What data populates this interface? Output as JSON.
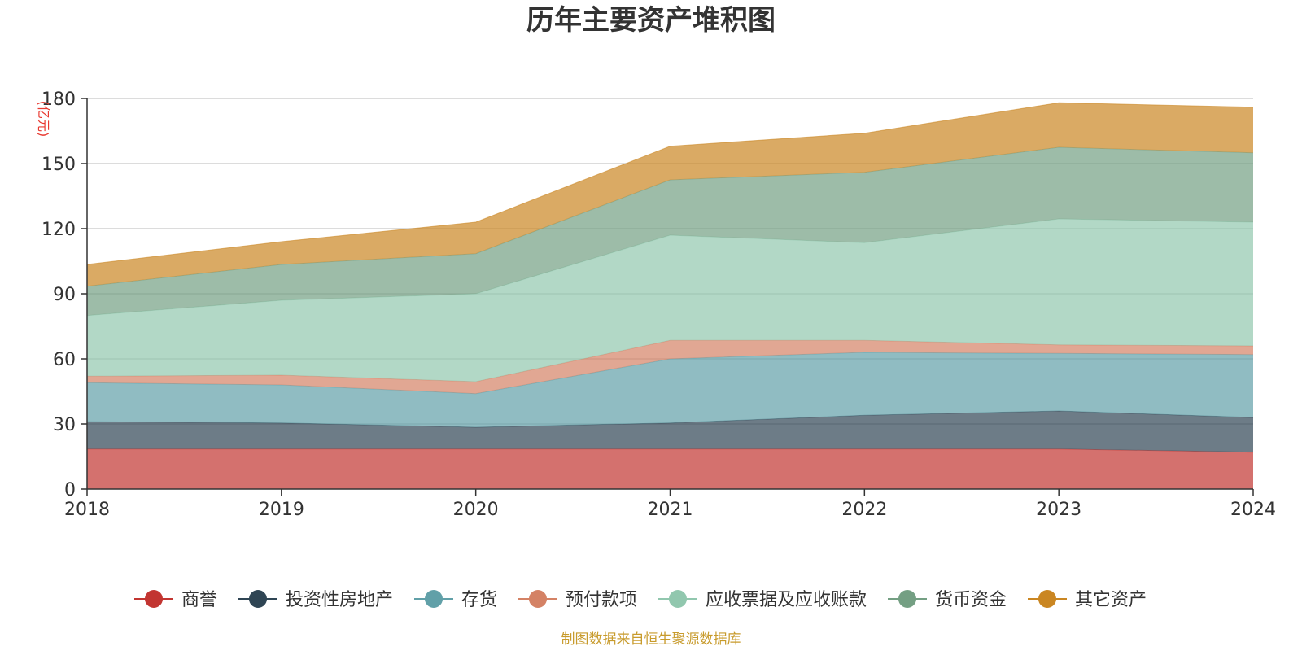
{
  "chart_data": {
    "type": "area",
    "stacked": true,
    "title": "历年主要资产堆积图",
    "unit": "(亿元)",
    "x": [
      "2018",
      "2019",
      "2020",
      "2021",
      "2022",
      "2023",
      "2024"
    ],
    "ylim": [
      0,
      180
    ],
    "yticks": [
      "0",
      "30",
      "60",
      "90",
      "120",
      "150",
      "180"
    ],
    "grid": true,
    "legend_position": "bottom",
    "series": [
      {
        "name": "商誉",
        "color": "#c23531",
        "values": [
          18.5,
          18.5,
          18.5,
          18.5,
          18.5,
          18.5,
          17.0
        ]
      },
      {
        "name": "投资性房地产",
        "color": "#2f4554",
        "values": [
          12.5,
          12.0,
          10.0,
          12.0,
          15.5,
          17.5,
          16.0
        ]
      },
      {
        "name": "存货",
        "color": "#61a0a8",
        "values": [
          18.0,
          17.5,
          15.5,
          29.5,
          29.0,
          26.5,
          29.0
        ]
      },
      {
        "name": "预付款项",
        "color": "#d48265",
        "values": [
          3.0,
          4.5,
          5.5,
          8.5,
          5.5,
          4.0,
          4.0
        ]
      },
      {
        "name": "应收票据及应收账款",
        "color": "#91c7ae",
        "values": [
          28.0,
          34.5,
          40.5,
          48.5,
          45.0,
          58.0,
          57.0
        ]
      },
      {
        "name": "货币资金",
        "color": "#749f83",
        "values": [
          13.5,
          16.5,
          18.5,
          25.5,
          32.5,
          33.0,
          32.0
        ]
      },
      {
        "name": "其它资产",
        "color": "#ca8622",
        "values": [
          10.0,
          10.5,
          14.5,
          15.5,
          18.0,
          20.5,
          21.0
        ]
      }
    ],
    "source": "制图数据来自恒生聚源数据库"
  }
}
